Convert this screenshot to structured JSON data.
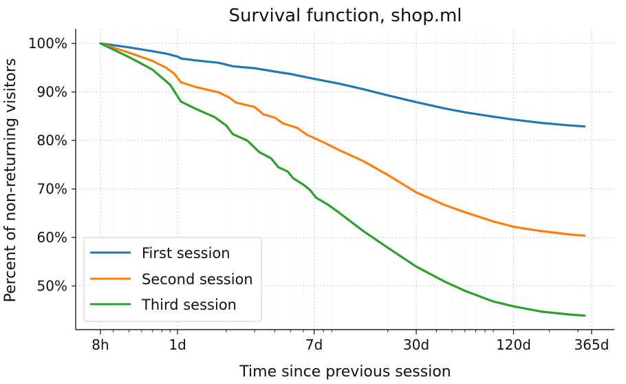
{
  "chart_data": {
    "type": "line",
    "title": "Survival function, shop.ml",
    "xlabel": "Time since previous session",
    "ylabel": "Percent of non-returning visitors",
    "x_scale": "log",
    "x_unit": "days",
    "xlim_days": [
      0.3333,
      365
    ],
    "ylim_percent": [
      41,
      103
    ],
    "x_ticks": [
      {
        "label": "8h",
        "days": 0.3333
      },
      {
        "label": "1d",
        "days": 1
      },
      {
        "label": "7d",
        "days": 7
      },
      {
        "label": "30d",
        "days": 30
      },
      {
        "label": "120d",
        "days": 120
      },
      {
        "label": "365d",
        "days": 365
      }
    ],
    "y_ticks": [
      {
        "label": "50%",
        "value": 50
      },
      {
        "label": "60%",
        "value": 60
      },
      {
        "label": "70%",
        "value": 70
      },
      {
        "label": "80%",
        "value": 80
      },
      {
        "label": "90%",
        "value": 90
      },
      {
        "label": "100%",
        "value": 100
      }
    ],
    "grid": true,
    "legend_position": "lower-left",
    "series": [
      {
        "name": "First session",
        "color": "#1f77b4",
        "points": [
          [
            0.3333,
            100
          ],
          [
            0.5,
            99.2
          ],
          [
            0.7,
            98.4
          ],
          [
            0.85,
            97.9
          ],
          [
            1.0,
            97.3
          ],
          [
            1.05,
            96.9
          ],
          [
            1.3,
            96.5
          ],
          [
            1.8,
            96.0
          ],
          [
            2.2,
            95.3
          ],
          [
            3.0,
            94.9
          ],
          [
            4.0,
            94.2
          ],
          [
            5.0,
            93.7
          ],
          [
            7.0,
            92.7
          ],
          [
            10,
            91.7
          ],
          [
            14,
            90.6
          ],
          [
            20,
            89.3
          ],
          [
            30,
            87.9
          ],
          [
            45,
            86.6
          ],
          [
            60,
            85.8
          ],
          [
            90,
            84.9
          ],
          [
            120,
            84.3
          ],
          [
            180,
            83.6
          ],
          [
            270,
            83.1
          ],
          [
            330,
            82.9
          ]
        ]
      },
      {
        "name": "Second session",
        "color": "#ff7f0e",
        "points": [
          [
            0.3333,
            100
          ],
          [
            0.5,
            98.1
          ],
          [
            0.7,
            96.4
          ],
          [
            0.85,
            95.0
          ],
          [
            0.95,
            93.8
          ],
          [
            1.05,
            92.0
          ],
          [
            1.3,
            91.0
          ],
          [
            1.8,
            89.9
          ],
          [
            2.1,
            88.8
          ],
          [
            2.3,
            87.8
          ],
          [
            3.0,
            86.9
          ],
          [
            3.4,
            85.4
          ],
          [
            4.0,
            84.7
          ],
          [
            4.5,
            83.5
          ],
          [
            5.5,
            82.6
          ],
          [
            6.3,
            81.2
          ],
          [
            7.0,
            80.5
          ],
          [
            8.5,
            79.2
          ],
          [
            10,
            78.0
          ],
          [
            14,
            75.8
          ],
          [
            20,
            72.9
          ],
          [
            30,
            69.3
          ],
          [
            45,
            66.7
          ],
          [
            60,
            65.2
          ],
          [
            90,
            63.3
          ],
          [
            120,
            62.2
          ],
          [
            180,
            61.3
          ],
          [
            270,
            60.6
          ],
          [
            330,
            60.4
          ]
        ]
      },
      {
        "name": "Third session",
        "color": "#2ca02c",
        "points": [
          [
            0.3333,
            100
          ],
          [
            0.5,
            97.2
          ],
          [
            0.7,
            94.6
          ],
          [
            0.9,
            91.5
          ],
          [
            1.05,
            88.0
          ],
          [
            1.3,
            86.5
          ],
          [
            1.7,
            84.8
          ],
          [
            2.0,
            83.1
          ],
          [
            2.2,
            81.3
          ],
          [
            2.7,
            80.0
          ],
          [
            3.2,
            77.6
          ],
          [
            3.8,
            76.3
          ],
          [
            4.2,
            74.5
          ],
          [
            4.8,
            73.6
          ],
          [
            5.2,
            72.2
          ],
          [
            6.0,
            70.9
          ],
          [
            6.6,
            69.8
          ],
          [
            7.2,
            68.2
          ],
          [
            8.5,
            66.8
          ],
          [
            10,
            65.1
          ],
          [
            14,
            61.4
          ],
          [
            20,
            57.9
          ],
          [
            30,
            54.0
          ],
          [
            45,
            50.9
          ],
          [
            60,
            49.0
          ],
          [
            90,
            46.8
          ],
          [
            120,
            45.8
          ],
          [
            180,
            44.7
          ],
          [
            270,
            44.1
          ],
          [
            330,
            43.9
          ]
        ]
      }
    ]
  }
}
